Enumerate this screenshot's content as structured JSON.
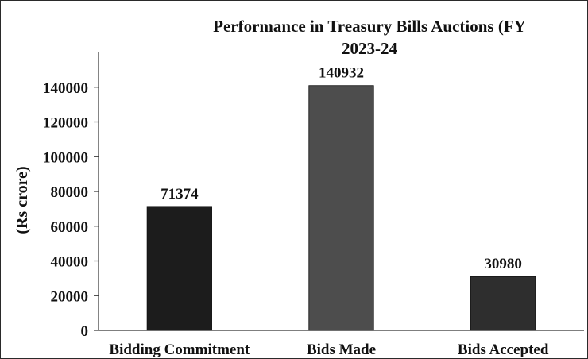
{
  "chart_data": {
    "type": "bar",
    "title_lines": [
      "Performance in Treasury Bills Auctions (FY",
      "2023-24"
    ],
    "ylabel": "(Rs crore)",
    "xlabel": "",
    "categories": [
      "Bidding Commitment",
      "Bids Made",
      "Bids Accepted"
    ],
    "values": [
      71374,
      140932,
      30980
    ],
    "data_labels": [
      "71374",
      "140932",
      "30980"
    ],
    "bar_colors": [
      "#1c1c1c",
      "#4d4d4d",
      "#2e2e2e"
    ],
    "ylim": [
      0,
      160000
    ],
    "yticks": [
      0,
      20000,
      40000,
      60000,
      80000,
      100000,
      120000,
      140000
    ],
    "ytick_labels": [
      "0",
      "20000",
      "40000",
      "60000",
      "80000",
      "100000",
      "120000",
      "140000"
    ],
    "grid": false,
    "legend": "none"
  }
}
